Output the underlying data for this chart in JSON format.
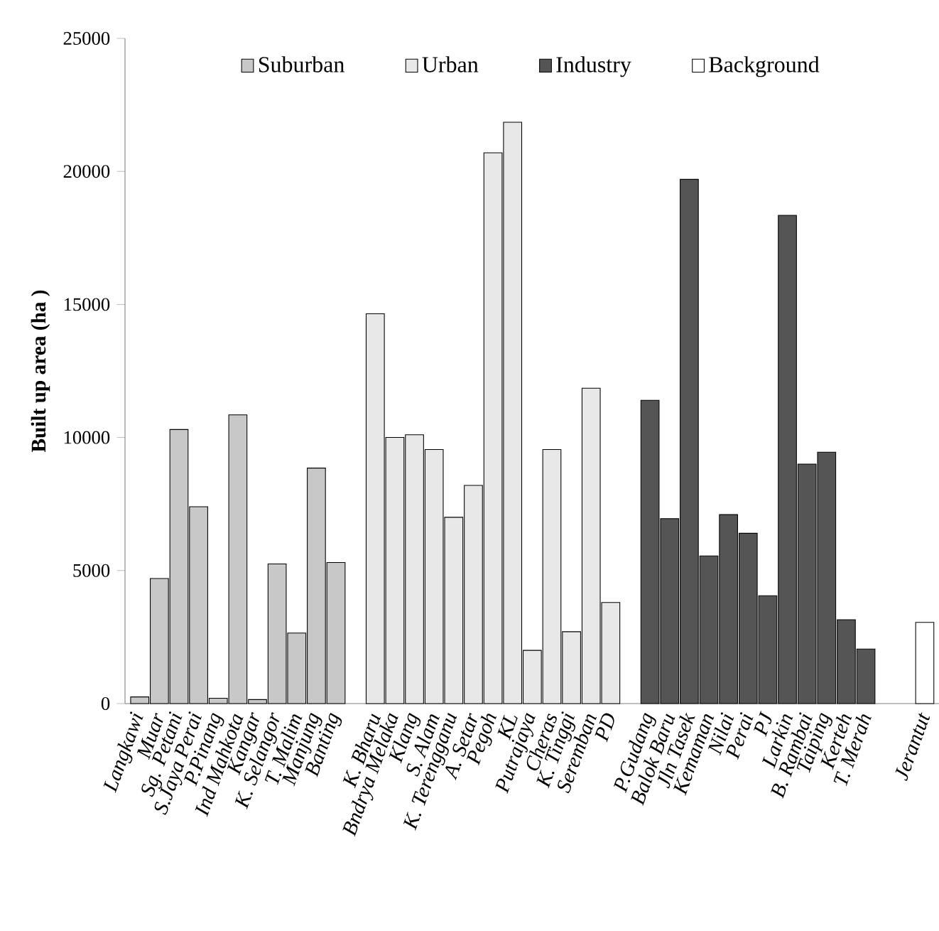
{
  "chart_data": {
    "type": "bar",
    "ylabel": "Built up area (ha )",
    "categories": [
      "Langkawi",
      "Muar",
      "Sg. Petani",
      "S.Jaya Perai",
      "P.Pinang",
      "Ind Mahkota",
      "Kangar",
      "K. Selangor",
      "T. Malim",
      "Manjung",
      "Banting",
      null,
      "K. Bharu",
      "Bndrya Melaka",
      "Klang",
      "S. Alam",
      "K. Terengganu",
      "A. Setar",
      "Pegoh",
      "KL",
      "Putrajaya",
      "Cheras",
      "K. Tinggi",
      "Seremban",
      "PD",
      null,
      "P.Gudang",
      "Balok Baru",
      "Jln Tasek",
      "Kemaman",
      "Nilai",
      "Perai",
      "PJ",
      "Larkin",
      "B. Rambai",
      "Taiping",
      "Kerteh",
      "T. Merah",
      null,
      null,
      "Jerantut"
    ],
    "series": [
      {
        "name": "Suburban",
        "color": "#c8c8c8",
        "values": [
          250,
          4700,
          10300,
          7400,
          200,
          10850,
          150,
          5250,
          2650,
          8850,
          5300,
          null,
          null,
          null,
          null,
          null,
          null,
          null,
          null,
          null,
          null,
          null,
          null,
          null,
          null,
          null,
          null,
          null,
          null,
          null,
          null,
          null,
          null,
          null,
          null,
          null,
          null,
          null,
          null,
          null,
          null
        ]
      },
      {
        "name": "Urban",
        "color": "#e8e8e8",
        "values": [
          null,
          null,
          null,
          null,
          null,
          null,
          null,
          null,
          null,
          null,
          null,
          null,
          14650,
          10000,
          10100,
          9550,
          7000,
          8200,
          20700,
          21850,
          2000,
          9550,
          2700,
          11850,
          3800,
          null,
          null,
          null,
          null,
          null,
          null,
          null,
          null,
          null,
          null,
          null,
          null,
          null,
          null,
          null,
          null
        ]
      },
      {
        "name": "Industry",
        "color": "#555555",
        "values": [
          null,
          null,
          null,
          null,
          null,
          null,
          null,
          null,
          null,
          null,
          null,
          null,
          null,
          null,
          null,
          null,
          null,
          null,
          null,
          null,
          null,
          null,
          null,
          null,
          null,
          null,
          11400,
          6950,
          19700,
          5550,
          7100,
          6400,
          4050,
          18350,
          9000,
          9450,
          3150,
          2050,
          null,
          null,
          null
        ]
      },
      {
        "name": "Background",
        "color": "#ffffff",
        "values": [
          null,
          null,
          null,
          null,
          null,
          null,
          null,
          null,
          null,
          null,
          null,
          null,
          null,
          null,
          null,
          null,
          null,
          null,
          null,
          null,
          null,
          null,
          null,
          null,
          null,
          null,
          null,
          null,
          null,
          null,
          null,
          null,
          null,
          null,
          null,
          null,
          null,
          null,
          null,
          null,
          3050
        ]
      }
    ],
    "ylim": [
      0,
      25000
    ],
    "yticks": [
      0,
      5000,
      10000,
      15000,
      20000,
      25000
    ],
    "legend": "top"
  }
}
